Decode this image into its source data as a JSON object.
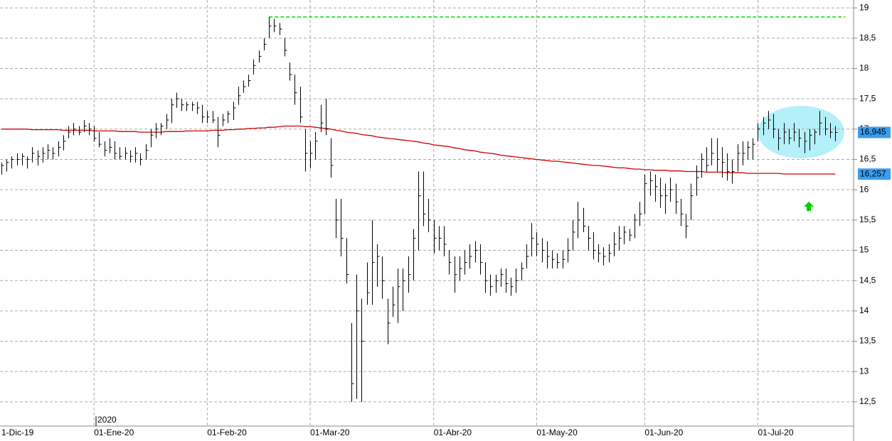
{
  "chart_data": {
    "type": "hlc",
    "year_label": "2020",
    "categories": [
      "1-Dic-19",
      null,
      null,
      null,
      null,
      null,
      null,
      null,
      null,
      null,
      null,
      null,
      null,
      null,
      null,
      null,
      null,
      null,
      "01-Ene-20",
      null,
      null,
      null,
      null,
      null,
      null,
      null,
      null,
      null,
      null,
      null,
      null,
      null,
      null,
      null,
      null,
      null,
      null,
      null,
      null,
      null,
      "01-Feb-20",
      null,
      null,
      null,
      null,
      null,
      null,
      null,
      null,
      null,
      null,
      null,
      null,
      null,
      null,
      null,
      null,
      null,
      null,
      null,
      "01-Mar-20",
      null,
      null,
      null,
      null,
      null,
      null,
      null,
      null,
      null,
      null,
      null,
      null,
      null,
      null,
      null,
      null,
      null,
      null,
      null,
      null,
      null,
      null,
      null,
      "01-Abr-20",
      null,
      null,
      null,
      null,
      null,
      null,
      null,
      null,
      null,
      null,
      null,
      null,
      null,
      null,
      null,
      null,
      null,
      null,
      null,
      "01-May-20",
      null,
      null,
      null,
      null,
      null,
      null,
      null,
      null,
      null,
      null,
      null,
      null,
      null,
      null,
      null,
      null,
      null,
      null,
      null,
      null,
      "01-Jun-20",
      null,
      null,
      null,
      null,
      null,
      null,
      null,
      null,
      null,
      null,
      null,
      null,
      null,
      null,
      null,
      null,
      null,
      null,
      null,
      null,
      null,
      "01-Jul-20",
      null,
      null,
      null,
      null,
      null,
      null,
      null,
      null,
      null,
      null,
      null,
      null,
      null,
      null,
      null
    ],
    "high": [
      16.45,
      16.5,
      16.55,
      16.6,
      16.6,
      16.55,
      16.7,
      16.65,
      16.7,
      16.75,
      16.7,
      16.8,
      16.9,
      17.05,
      17.1,
      17.05,
      17.15,
      17.1,
      17.05,
      16.95,
      16.8,
      16.85,
      16.8,
      16.7,
      16.7,
      16.65,
      16.7,
      16.6,
      16.75,
      17.0,
      17.1,
      17.1,
      17.25,
      17.5,
      17.6,
      17.5,
      17.45,
      17.45,
      17.45,
      17.4,
      17.3,
      17.3,
      17.2,
      17.25,
      17.3,
      17.45,
      17.7,
      17.8,
      17.9,
      18.15,
      18.3,
      18.5,
      18.85,
      18.82,
      18.75,
      18.5,
      18.1,
      17.9,
      17.7,
      17.0,
      16.8,
      16.95,
      17.4,
      17.5,
      16.85,
      15.85,
      15.85,
      15.2,
      13.8,
      14.6,
      14.2,
      14.8,
      15.5,
      15.1,
      14.9,
      14.2,
      14.4,
      14.7,
      14.7,
      14.9,
      15.35,
      16.3,
      16.3,
      15.85,
      15.5,
      15.4,
      15.4,
      15.0,
      14.9,
      14.9,
      15.0,
      15.1,
      15.15,
      15.1,
      14.8,
      14.6,
      14.6,
      14.7,
      14.7,
      14.55,
      14.7,
      14.8,
      15.1,
      15.45,
      15.3,
      15.2,
      15.15,
      15.0,
      14.95,
      15.0,
      15.2,
      15.5,
      15.8,
      15.7,
      15.4,
      15.3,
      15.1,
      15.05,
      15.1,
      15.3,
      15.4,
      15.4,
      15.35,
      15.6,
      15.8,
      16.25,
      16.3,
      16.25,
      16.2,
      16.1,
      16.2,
      16.1,
      15.85,
      15.6,
      16.1,
      16.4,
      16.6,
      16.7,
      16.85,
      16.85,
      16.7,
      16.6,
      16.5,
      16.75,
      16.8,
      16.8,
      16.85,
      17.1,
      17.2,
      17.3,
      17.25,
      17.0,
      17.1,
      17.0,
      17.1,
      17.0,
      16.95,
      17.0,
      17.0,
      17.3,
      17.2,
      17.1,
      17.05
    ],
    "low": [
      16.25,
      16.3,
      16.35,
      16.4,
      16.4,
      16.35,
      16.45,
      16.4,
      16.45,
      16.5,
      16.5,
      16.55,
      16.65,
      16.85,
      16.9,
      16.9,
      16.95,
      16.9,
      16.8,
      16.7,
      16.55,
      16.6,
      16.5,
      16.5,
      16.5,
      16.45,
      16.45,
      16.4,
      16.5,
      16.7,
      16.85,
      16.9,
      17.0,
      17.1,
      17.35,
      17.3,
      17.3,
      17.3,
      17.25,
      17.1,
      17.1,
      17.1,
      16.7,
      17.05,
      17.1,
      17.15,
      17.4,
      17.6,
      17.7,
      17.9,
      18.1,
      18.3,
      18.5,
      18.6,
      18.55,
      18.2,
      17.8,
      17.4,
      17.1,
      16.3,
      16.35,
      16.5,
      16.95,
      16.9,
      16.2,
      15.2,
      14.9,
      14.45,
      12.5,
      12.55,
      12.5,
      14.1,
      14.1,
      14.4,
      14.2,
      13.45,
      13.9,
      13.8,
      14.0,
      14.3,
      14.5,
      15.0,
      15.4,
      15.3,
      14.95,
      15.0,
      14.9,
      14.6,
      14.3,
      14.5,
      14.6,
      14.7,
      14.8,
      14.6,
      14.3,
      14.25,
      14.3,
      14.4,
      14.3,
      14.25,
      14.3,
      14.5,
      14.7,
      14.9,
      14.9,
      14.8,
      14.7,
      14.7,
      14.7,
      14.7,
      14.8,
      15.0,
      15.2,
      15.3,
      15.0,
      14.85,
      14.8,
      14.75,
      14.8,
      14.9,
      15.0,
      15.1,
      15.15,
      15.2,
      15.4,
      15.6,
      15.9,
      15.8,
      15.7,
      15.6,
      15.8,
      15.6,
      15.4,
      15.2,
      15.5,
      15.9,
      16.2,
      16.3,
      16.4,
      16.3,
      16.2,
      16.15,
      16.1,
      16.3,
      16.4,
      16.5,
      16.5,
      16.8,
      16.9,
      17.0,
      16.85,
      16.65,
      16.75,
      16.75,
      16.8,
      16.7,
      16.6,
      16.65,
      16.75,
      16.9,
      16.9,
      16.85,
      16.8
    ],
    "close": [
      16.4,
      16.45,
      16.5,
      16.5,
      16.55,
      16.5,
      16.6,
      16.55,
      16.6,
      16.65,
      16.6,
      16.7,
      16.8,
      16.95,
      17.0,
      16.95,
      17.05,
      17.0,
      16.85,
      16.75,
      16.65,
      16.7,
      16.6,
      16.55,
      16.6,
      16.55,
      16.6,
      16.5,
      16.65,
      16.9,
      17.0,
      17.05,
      17.15,
      17.4,
      17.5,
      17.4,
      17.4,
      17.4,
      17.35,
      17.2,
      17.2,
      17.15,
      16.9,
      17.15,
      17.25,
      17.35,
      17.55,
      17.7,
      17.8,
      18.05,
      18.2,
      18.4,
      18.7,
      18.7,
      18.65,
      18.3,
      17.9,
      17.6,
      17.2,
      16.6,
      16.6,
      16.8,
      17.1,
      17.0,
      16.4,
      15.5,
      15.2,
      14.6,
      12.8,
      14.0,
      13.5,
      14.3,
      14.8,
      14.9,
      14.5,
      13.8,
      14.1,
      14.4,
      14.5,
      14.6,
      15.2,
      15.9,
      15.6,
      15.5,
      15.2,
      15.2,
      15.1,
      14.8,
      14.6,
      14.7,
      14.8,
      14.9,
      15.0,
      14.8,
      14.5,
      14.4,
      14.5,
      14.6,
      14.45,
      14.4,
      14.5,
      14.7,
      14.9,
      15.2,
      15.1,
      15.0,
      14.9,
      14.85,
      14.8,
      14.85,
      15.0,
      15.3,
      15.5,
      15.4,
      15.2,
      15.0,
      14.95,
      14.9,
      14.95,
      15.1,
      15.2,
      15.3,
      15.25,
      15.5,
      15.6,
      16.1,
      16.15,
      16.05,
      15.9,
      15.9,
      16.0,
      15.8,
      15.6,
      15.4,
      15.9,
      16.2,
      16.5,
      16.4,
      16.6,
      16.5,
      16.45,
      16.3,
      16.3,
      16.6,
      16.6,
      16.7,
      16.75,
      17.0,
      17.1,
      17.15,
      17.0,
      16.85,
      16.95,
      16.85,
      16.95,
      16.85,
      16.8,
      16.9,
      16.95,
      17.1,
      17.0,
      16.95,
      16.945
    ],
    "bar_color": "#000000",
    "ma": {
      "color": "#cc0000",
      "values": [
        17.0,
        17.0,
        17.0,
        17.0,
        17.0,
        17.0,
        16.99,
        16.99,
        16.99,
        16.99,
        16.99,
        16.99,
        16.98,
        16.98,
        16.98,
        16.98,
        16.98,
        16.98,
        16.97,
        16.97,
        16.97,
        16.97,
        16.97,
        16.96,
        16.96,
        16.96,
        16.96,
        16.95,
        16.95,
        16.95,
        16.95,
        16.95,
        16.96,
        16.96,
        16.96,
        16.96,
        16.97,
        16.97,
        16.97,
        16.97,
        16.97,
        16.98,
        16.98,
        16.98,
        16.99,
        16.99,
        17.0,
        17.0,
        17.01,
        17.01,
        17.02,
        17.02,
        17.03,
        17.03,
        17.04,
        17.05,
        17.05,
        17.05,
        17.05,
        17.04,
        17.04,
        17.03,
        17.02,
        17.01,
        17.0,
        16.98,
        16.97,
        16.95,
        16.94,
        16.93,
        16.91,
        16.9,
        16.89,
        16.87,
        16.86,
        16.85,
        16.84,
        16.83,
        16.82,
        16.81,
        16.8,
        16.79,
        16.77,
        16.76,
        16.74,
        16.73,
        16.72,
        16.71,
        16.69,
        16.68,
        16.66,
        16.65,
        16.64,
        16.62,
        16.61,
        16.6,
        16.59,
        16.57,
        16.56,
        16.55,
        16.54,
        16.53,
        16.52,
        16.51,
        16.5,
        16.49,
        16.48,
        16.47,
        16.47,
        16.46,
        16.45,
        16.44,
        16.43,
        16.42,
        16.41,
        16.4,
        16.4,
        16.39,
        16.38,
        16.37,
        16.36,
        16.36,
        16.35,
        16.34,
        16.34,
        16.33,
        16.33,
        16.32,
        16.32,
        16.32,
        16.31,
        16.31,
        16.31,
        16.3,
        16.3,
        16.3,
        16.3,
        16.29,
        16.29,
        16.29,
        16.29,
        16.28,
        16.28,
        16.28,
        16.28,
        16.27,
        16.27,
        16.27,
        16.27,
        16.27,
        16.27,
        16.27,
        16.26,
        16.26,
        16.26,
        16.26,
        16.26,
        16.26,
        16.26,
        16.26,
        16.26,
        16.26,
        16.257
      ]
    },
    "resistance": {
      "value": 18.85,
      "color": "#00dd00"
    },
    "price_labels": [
      {
        "value": 16.945,
        "label": "16,945",
        "color": "#3a9ef0"
      },
      {
        "value": 16.257,
        "label": "16,257",
        "color": "#3a9ef0"
      }
    ],
    "ylim": [
      12.1,
      19.13
    ],
    "yticks": [
      {
        "value": 12.5,
        "label": "12,5"
      },
      13,
      {
        "value": 13.5,
        "label": "13,5"
      },
      14,
      {
        "value": 14.5,
        "label": "14,5"
      },
      15,
      {
        "value": 15.5,
        "label": "15,5"
      },
      16,
      {
        "value": 16.5,
        "label": "16,5"
      },
      17,
      {
        "value": 17.5,
        "label": "17,5"
      },
      18,
      {
        "value": 18.5,
        "label": "18,5"
      },
      19
    ],
    "grid": true
  }
}
